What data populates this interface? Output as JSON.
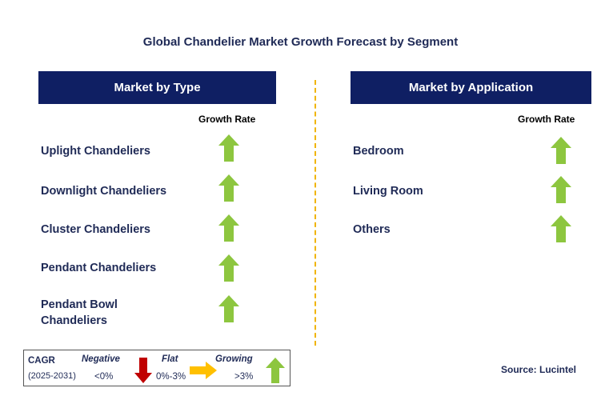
{
  "title": "Global Chandelier Market Growth Forecast by Segment",
  "colors": {
    "header_bg": "#0f1f63",
    "up_arrow": "#8dc63f",
    "flat_arrow": "#ffc000",
    "down_arrow": "#c00000",
    "divider": "#f0b400"
  },
  "left_panel": {
    "header": "Market by Type",
    "growth_label": "Growth Rate",
    "rows": [
      {
        "label": "Uplight Chandeliers",
        "trend": "growing"
      },
      {
        "label": "Downlight Chandeliers",
        "trend": "growing"
      },
      {
        "label": "Cluster Chandeliers",
        "trend": "growing"
      },
      {
        "label": "Pendant Chandeliers",
        "trend": "growing"
      },
      {
        "label_line1": "Pendant Bowl",
        "label_line2": "Chandeliers",
        "trend": "growing"
      }
    ]
  },
  "right_panel": {
    "header": "Market by Application",
    "growth_label": "Growth Rate",
    "rows": [
      {
        "label": "Bedroom",
        "trend": "growing"
      },
      {
        "label": "Living Room",
        "trend": "growing"
      },
      {
        "label": "Others",
        "trend": "growing"
      }
    ]
  },
  "legend": {
    "cagr_label": "CAGR",
    "period": "(2025-2031)",
    "negative_label": "Negative",
    "negative_value": "<0%",
    "flat_label": "Flat",
    "flat_value": "0%-3%",
    "growing_label": "Growing",
    "growing_value": ">3%"
  },
  "source": "Source: Lucintel"
}
